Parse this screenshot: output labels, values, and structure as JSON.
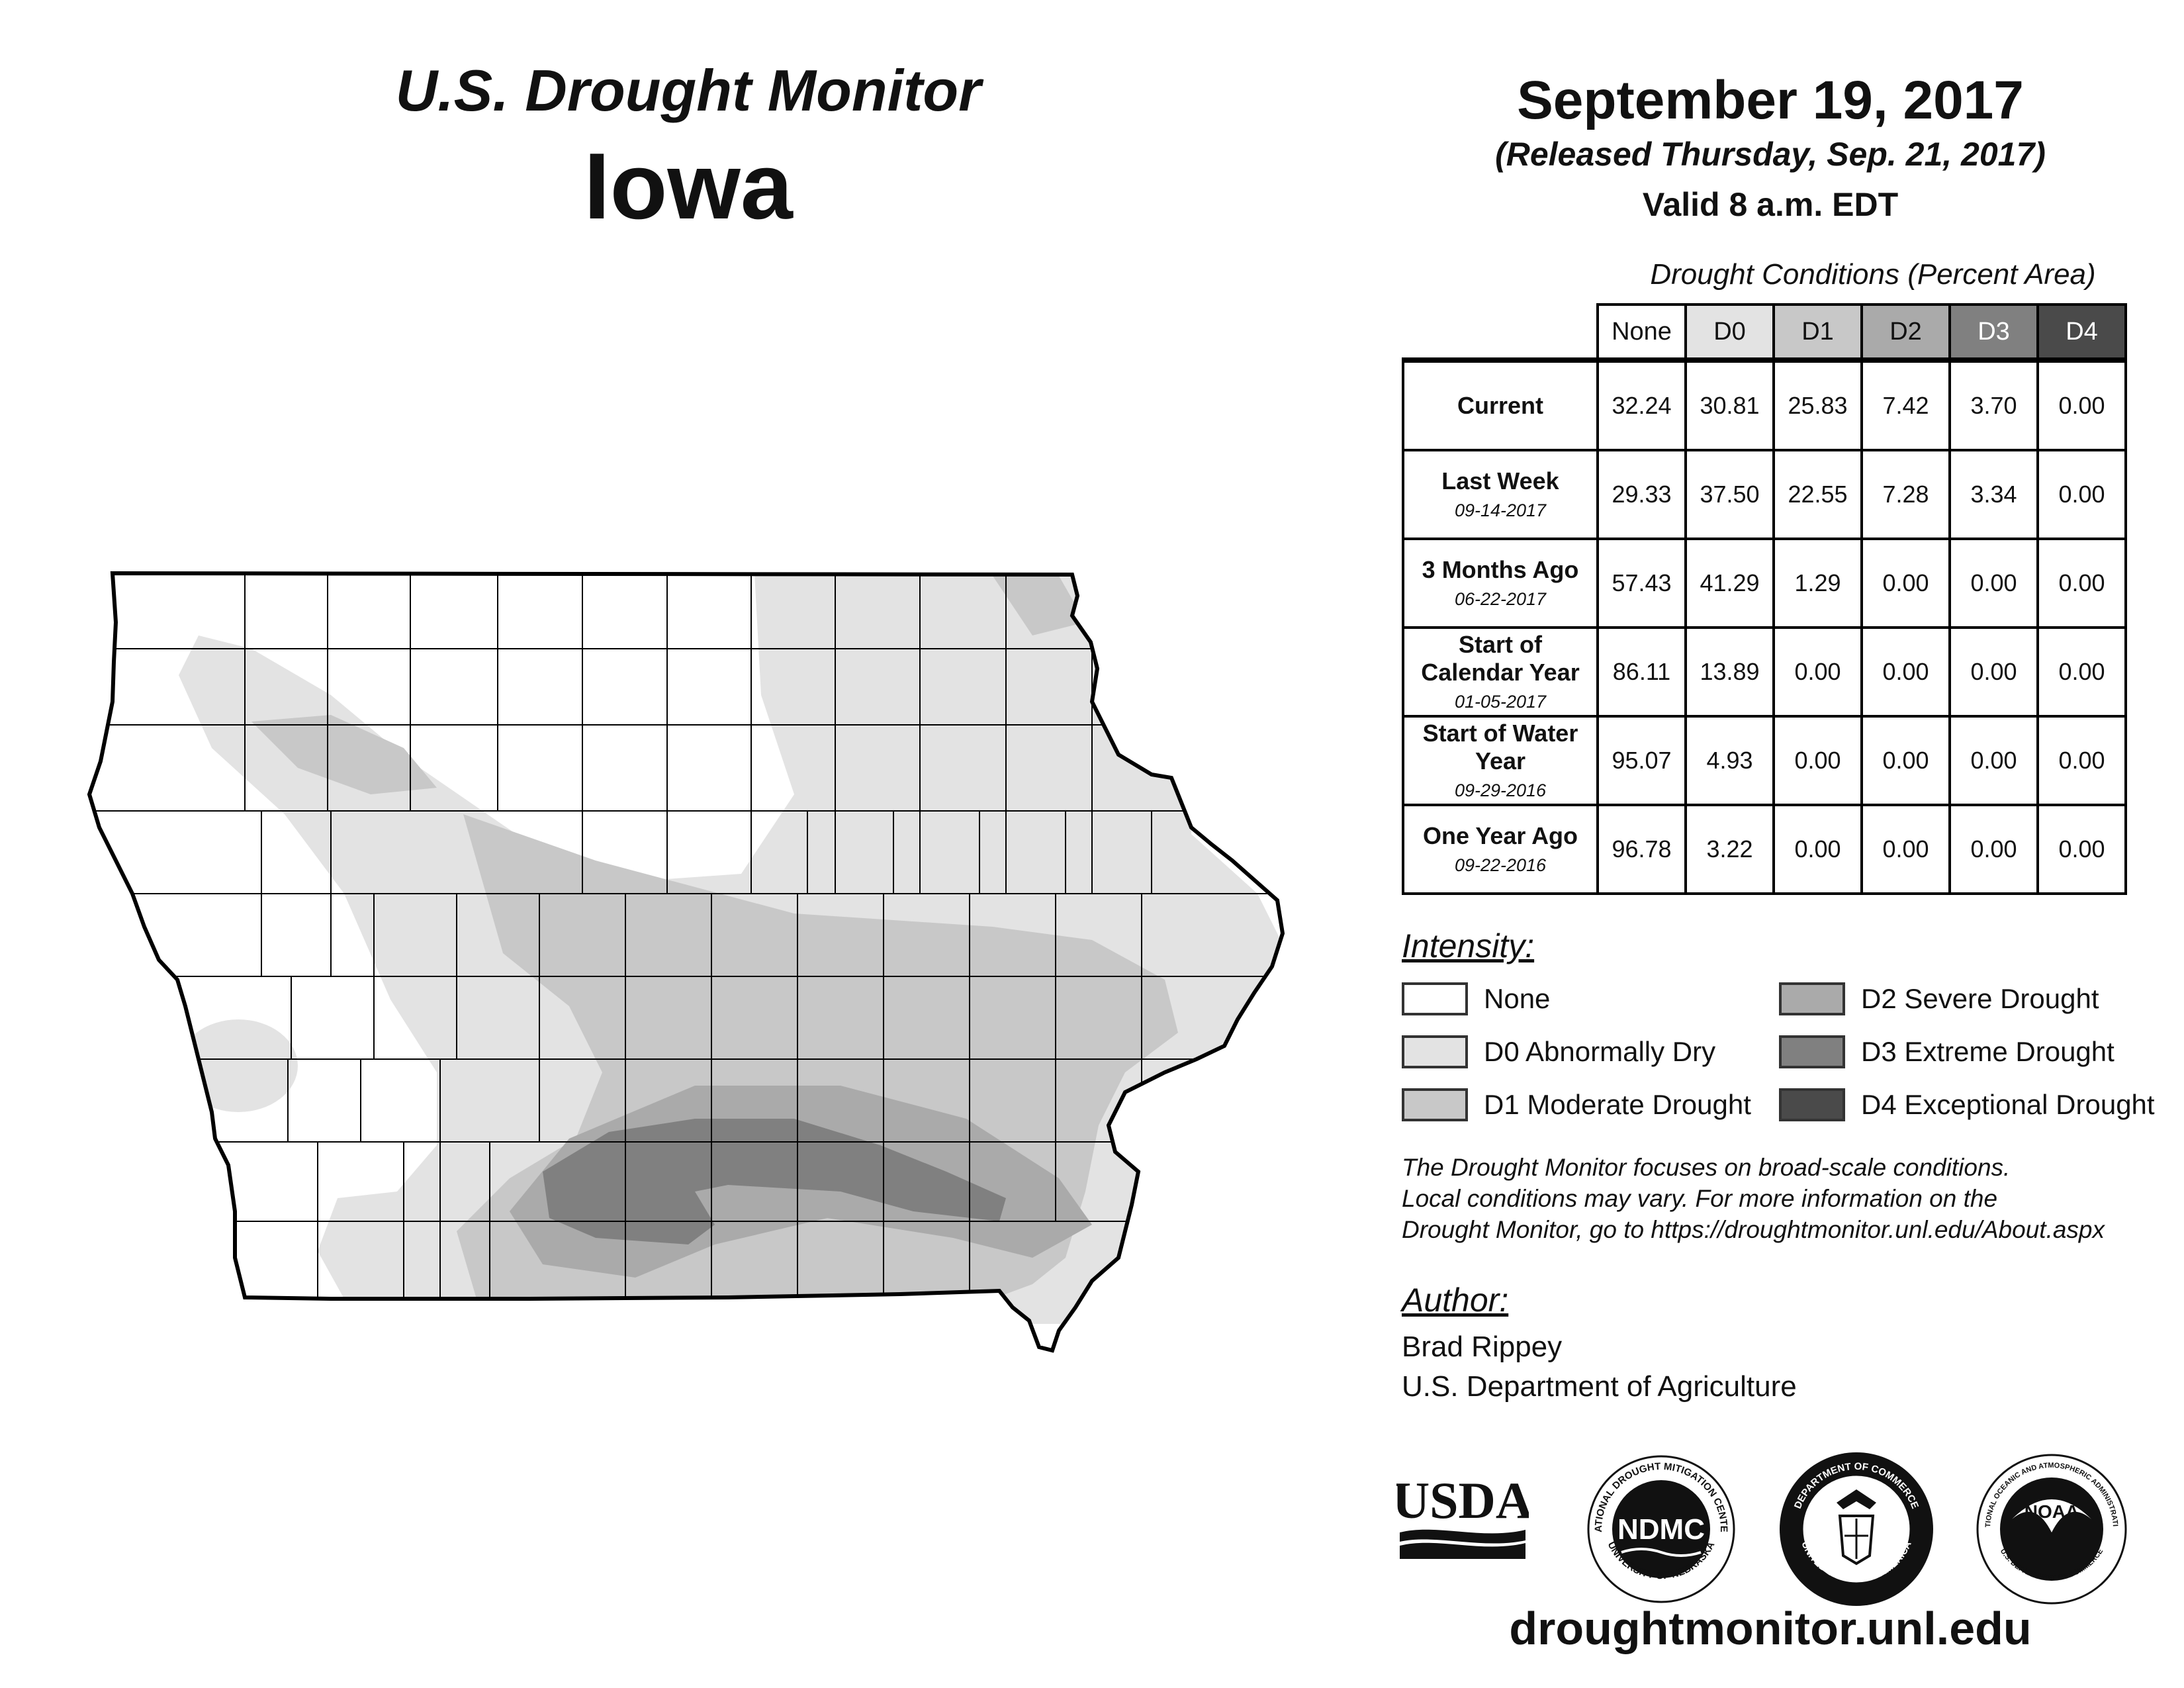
{
  "header": {
    "subtitle": "U.S. Drought Monitor",
    "state": "Iowa",
    "date": "September 19, 2017",
    "released": "(Released Thursday, Sep. 21, 2017)",
    "valid": "Valid 8 a.m. EDT"
  },
  "table": {
    "title": "Drought Conditions (Percent Area)",
    "columns": [
      "None",
      "D0",
      "D1",
      "D2",
      "D3",
      "D4"
    ],
    "rows": [
      {
        "label": "Current",
        "date": "",
        "values": [
          "32.24",
          "30.81",
          "25.83",
          "7.42",
          "3.70",
          "0.00"
        ]
      },
      {
        "label": "Last Week",
        "date": "09-14-2017",
        "values": [
          "29.33",
          "37.50",
          "22.55",
          "7.28",
          "3.34",
          "0.00"
        ]
      },
      {
        "label": "3 Months Ago",
        "date": "06-22-2017",
        "values": [
          "57.43",
          "41.29",
          "1.29",
          "0.00",
          "0.00",
          "0.00"
        ]
      },
      {
        "label": "Start of Calendar Year",
        "date": "01-05-2017",
        "values": [
          "86.11",
          "13.89",
          "0.00",
          "0.00",
          "0.00",
          "0.00"
        ]
      },
      {
        "label": "Start of Water Year",
        "date": "09-29-2016",
        "values": [
          "95.07",
          "4.93",
          "0.00",
          "0.00",
          "0.00",
          "0.00"
        ]
      },
      {
        "label": "One Year Ago",
        "date": "09-22-2016",
        "values": [
          "96.78",
          "3.22",
          "0.00",
          "0.00",
          "0.00",
          "0.00"
        ]
      }
    ]
  },
  "legend": {
    "title": "Intensity:",
    "items": [
      {
        "label": "None",
        "color": "#ffffff"
      },
      {
        "label": "D0 Abnormally Dry",
        "color": "#e3e3e3"
      },
      {
        "label": "D1 Moderate Drought",
        "color": "#c8c8c8"
      },
      {
        "label": "D2 Severe Drought",
        "color": "#aaaaaa"
      },
      {
        "label": "D3 Extreme Drought",
        "color": "#808080"
      },
      {
        "label": "D4 Exceptional Drought",
        "color": "#4a4a4a"
      }
    ]
  },
  "disclaimer": {
    "line1": "The Drought Monitor focuses on broad-scale conditions.",
    "line2": "Local conditions may vary. For more information on the",
    "line3": "Drought Monitor, go to https://droughtmonitor.unl.edu/About.aspx"
  },
  "author": {
    "title": "Author:",
    "name": "Brad Rippey",
    "org": "U.S. Department of Agriculture"
  },
  "logos": {
    "usda": "USDA",
    "ndmc": "NDMC",
    "ndmc_ring_top": "NATIONAL DROUGHT MITIGATION CENTER",
    "ndmc_ring_bottom": "UNIVERSITY OF NEBRASKA",
    "doc_ring_top": "DEPARTMENT OF COMMERCE",
    "doc_ring_bottom": "UNITED STATES OF AMERICA",
    "noaa": "NOAA",
    "noaa_ring_top": "NATIONAL OCEANIC AND ATMOSPHERIC ADMINISTRATION",
    "noaa_ring_bottom": "U.S. DEPARTMENT OF COMMERCE"
  },
  "footer": {
    "url": "droughtmonitor.unl.edu"
  }
}
